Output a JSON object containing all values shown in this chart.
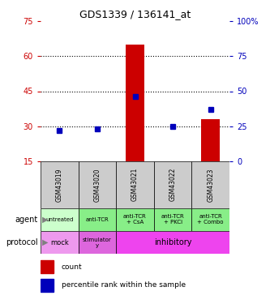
{
  "title": "GDS1339 / 136141_at",
  "samples": [
    "GSM43019",
    "GSM43020",
    "GSM43021",
    "GSM43022",
    "GSM43023"
  ],
  "count_values": [
    15,
    15,
    65,
    15,
    33
  ],
  "percentile_values": [
    22,
    23,
    46,
    25,
    37
  ],
  "left_yticks": [
    15,
    30,
    45,
    60,
    75
  ],
  "right_yticks": [
    0,
    25,
    50,
    75,
    100
  ],
  "right_yticklabels": [
    "0",
    "25",
    "50",
    "75",
    "100%"
  ],
  "ylim": [
    15,
    75
  ],
  "percentile_ylim": [
    0,
    100
  ],
  "bar_color": "#CC0000",
  "dot_color": "#0000BB",
  "dotted_line_color": "#000000",
  "dotted_lines": [
    30,
    45,
    60
  ],
  "agent_labels": [
    "untreated",
    "anti-TCR",
    "anti-TCR\n+ CsA",
    "anti-TCR\n+ PKCi",
    "anti-TCR\n+ Combo"
  ],
  "agent_color_light": "#ccffcc",
  "agent_color_dark": "#88ee88",
  "protocol_mock_color": "#ee99ee",
  "protocol_stim_color": "#dd66dd",
  "protocol_inhib_color": "#ee44ee",
  "background_color": "#ffffff",
  "gsm_bg_color": "#cccccc",
  "left_tick_color": "#CC0000",
  "right_tick_color": "#0000BB"
}
